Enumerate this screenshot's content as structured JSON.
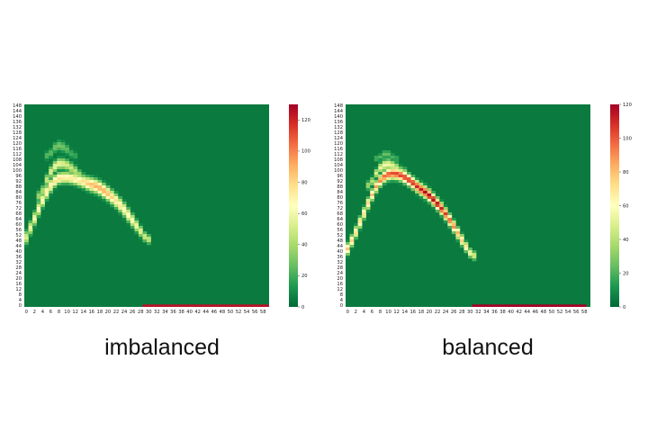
{
  "palette": {
    "stops": [
      "#006837",
      "#1a9850",
      "#66bd63",
      "#a6d96a",
      "#d9ef8b",
      "#ffffbf",
      "#fee08b",
      "#fdae61",
      "#f46d43",
      "#d73027",
      "#a50026"
    ],
    "background": "#0a7a3e"
  },
  "chart_data": [
    {
      "type": "heatmap",
      "title": "",
      "xlabel": "",
      "ylabel": "",
      "caption": "imbalanced",
      "x_ticks": [
        "0",
        "2",
        "4",
        "6",
        "8",
        "10",
        "12",
        "14",
        "16",
        "18",
        "20",
        "22",
        "24",
        "26",
        "28",
        "30",
        "32",
        "34",
        "36",
        "38",
        "40",
        "42",
        "44",
        "46",
        "48",
        "50",
        "52",
        "54",
        "56",
        "58"
      ],
      "y_ticks": [
        "148",
        "144",
        "140",
        "136",
        "132",
        "128",
        "124",
        "120",
        "116",
        "112",
        "108",
        "104",
        "100",
        "96",
        "92",
        "88",
        "84",
        "80",
        "76",
        "72",
        "68",
        "64",
        "60",
        "56",
        "52",
        "48",
        "44",
        "40",
        "36",
        "32",
        "28",
        "24",
        "20",
        "16",
        "12",
        "8",
        "4",
        "0"
      ],
      "x_range": [
        0,
        60
      ],
      "y_range": [
        0,
        150
      ],
      "colorbar": {
        "min": 0,
        "max": 130,
        "ticks": [
          "0",
          "20",
          "40",
          "60",
          "80",
          "100",
          "120"
        ],
        "tick_values": [
          0,
          20,
          40,
          60,
          80,
          100,
          120
        ]
      },
      "bands": [
        {
          "x": [
            0,
            2,
            4,
            6,
            8,
            10,
            12,
            14,
            16,
            18,
            20,
            22,
            24,
            26,
            28,
            30
          ],
          "y": [
            48,
            62,
            76,
            88,
            95,
            96,
            95,
            93,
            91,
            89,
            85,
            80,
            74,
            66,
            58,
            50
          ],
          "width": [
            6,
            6,
            6,
            6,
            5,
            5,
            5,
            5,
            6,
            6,
            6,
            6,
            6,
            6,
            5,
            4
          ],
          "peak": [
            50,
            60,
            66,
            72,
            78,
            75,
            72,
            76,
            86,
            92,
            90,
            80,
            72,
            66,
            60,
            48
          ]
        },
        {
          "x": [
            4,
            6,
            8,
            10,
            12,
            14,
            16
          ],
          "y": [
            82,
            98,
            106,
            106,
            102,
            96,
            92
          ],
          "width": [
            5,
            5,
            5,
            5,
            5,
            5,
            5
          ],
          "peak": [
            38,
            52,
            60,
            52,
            46,
            40,
            28
          ]
        },
        {
          "x": [
            6,
            8,
            10,
            12
          ],
          "y": [
            112,
            120,
            118,
            112
          ],
          "width": [
            4,
            5,
            5,
            4
          ],
          "peak": [
            24,
            30,
            28,
            18
          ]
        }
      ],
      "baseline": {
        "x_from": 29,
        "x_to": 60,
        "value": 125
      }
    },
    {
      "type": "heatmap",
      "title": "",
      "xlabel": "",
      "ylabel": "",
      "caption": "balanced",
      "x_ticks": [
        "0",
        "2",
        "4",
        "6",
        "8",
        "10",
        "12",
        "14",
        "16",
        "18",
        "20",
        "22",
        "24",
        "26",
        "28",
        "30",
        "32",
        "34",
        "36",
        "38",
        "40",
        "42",
        "44",
        "46",
        "48",
        "50",
        "52",
        "54",
        "56",
        "58"
      ],
      "y_ticks": [
        "148",
        "144",
        "140",
        "136",
        "132",
        "128",
        "124",
        "120",
        "116",
        "112",
        "108",
        "104",
        "100",
        "96",
        "92",
        "88",
        "84",
        "80",
        "76",
        "72",
        "68",
        "64",
        "60",
        "56",
        "52",
        "48",
        "44",
        "40",
        "36",
        "32",
        "28",
        "24",
        "20",
        "16",
        "12",
        "8",
        "4",
        "0"
      ],
      "x_range": [
        0,
        60
      ],
      "y_range": [
        0,
        150
      ],
      "colorbar": {
        "min": 0,
        "max": 120,
        "ticks": [
          "0",
          "20",
          "40",
          "60",
          "80",
          "100",
          "120"
        ],
        "tick_values": [
          0,
          20,
          40,
          60,
          80,
          100,
          120
        ]
      },
      "bands": [
        {
          "x": [
            0,
            2,
            4,
            6,
            8,
            10,
            12,
            14,
            16,
            18,
            20,
            22,
            24,
            26,
            28,
            30,
            31
          ],
          "y": [
            40,
            52,
            66,
            80,
            92,
            98,
            99,
            97,
            93,
            88,
            84,
            78,
            71,
            62,
            52,
            42,
            38
          ],
          "width": [
            5,
            5,
            5,
            5,
            5,
            5,
            5,
            5,
            5,
            5,
            5,
            5,
            5,
            5,
            5,
            4,
            4
          ],
          "peak": [
            80,
            72,
            70,
            76,
            90,
            100,
            104,
            106,
            108,
            112,
            118,
            118,
            110,
            96,
            80,
            66,
            48
          ]
        },
        {
          "x": [
            6,
            8,
            10,
            12,
            14
          ],
          "y": [
            90,
            102,
            106,
            104,
            100
          ],
          "width": [
            4,
            4,
            5,
            5,
            4
          ],
          "peak": [
            36,
            52,
            56,
            48,
            34
          ]
        },
        {
          "x": [
            8,
            10,
            12
          ],
          "y": [
            110,
            114,
            110
          ],
          "width": [
            3,
            4,
            3
          ],
          "peak": [
            20,
            26,
            18
          ]
        }
      ],
      "baseline": {
        "x_from": 31,
        "x_to": 59,
        "value": 120
      }
    }
  ]
}
